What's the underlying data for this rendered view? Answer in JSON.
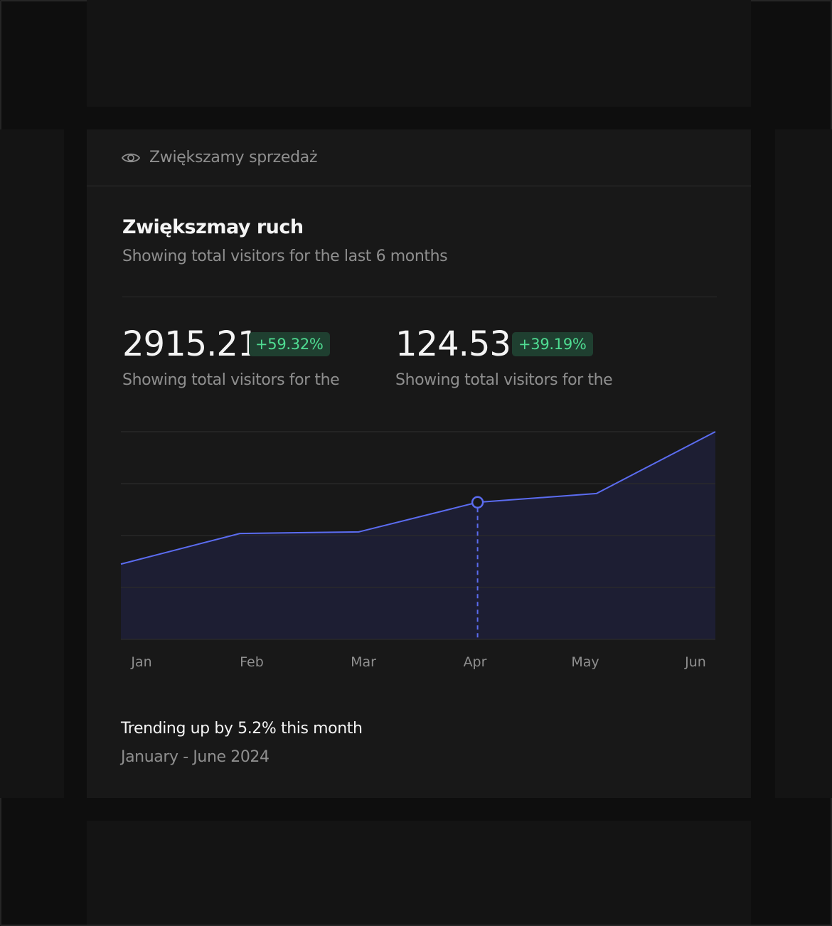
{
  "card": {
    "header_label": "Zwiększamy sprzedaż",
    "title": "Zwiększmay ruch",
    "subtitle": "Showing total visitors for the last 6 months"
  },
  "stats": [
    {
      "value": "2915.21",
      "badge": "+59.32%",
      "caption": "Showing total visitors for the"
    },
    {
      "value": "124.53",
      "badge": "+39.19%",
      "caption": "Showing total visitors for the"
    }
  ],
  "footer": {
    "trend": "Trending up by 5.2% this month",
    "range": "January - June 2024"
  },
  "colors": {
    "line": "#5b6cf0",
    "area": "#1d1e33",
    "badge_bg": "#1f3f30",
    "badge_text": "#4fdc92"
  },
  "chart_data": {
    "type": "area",
    "categories": [
      "Jan",
      "Feb",
      "Mar",
      "Apr",
      "May",
      "Jun"
    ],
    "values": [
      145,
      204,
      207,
      264,
      281,
      400
    ],
    "ylim": [
      0,
      400
    ],
    "grid": true,
    "highlight_index": 3,
    "title": "",
    "xlabel": "",
    "ylabel": ""
  }
}
